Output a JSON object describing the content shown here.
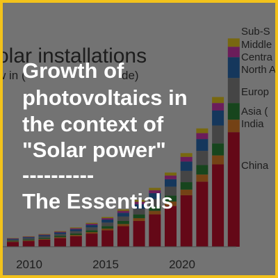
{
  "background_chart": {
    "title": "olar installations",
    "subtitle": [
      "w in (",
      "de)"
    ],
    "legend": [
      "Sub-S",
      "Middle",
      "Centra",
      "North A",
      "Europ",
      "Asia (",
      "India",
      "China"
    ],
    "x_labels": [
      "2010",
      "2015",
      "2020"
    ]
  },
  "title_lines": [
    "Growth of",
    "photovoltaics in",
    "the context of",
    "\"Solar power\"",
    "----------",
    "The Essentials"
  ]
}
